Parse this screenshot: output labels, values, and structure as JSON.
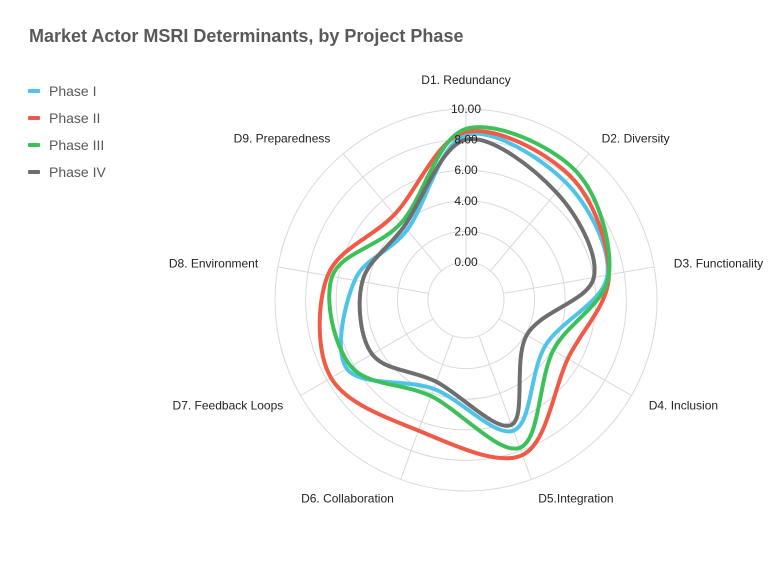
{
  "chart_data": {
    "type": "radar",
    "title": "Market Actor MSRI Determinants, by Project Phase",
    "axes": [
      "D1. Redundancy",
      "D2. Diversity",
      "D3. Functionality",
      "D4. Inclusion",
      "D5.Integration",
      "D6. Collaboration",
      "D7. Feedback Loops",
      "D8. Environment",
      "D9. Preparedness"
    ],
    "rlim": [
      0,
      10
    ],
    "ticks": [
      0,
      2,
      4,
      6,
      8,
      10
    ],
    "tick_labels": [
      "0.00",
      "2.00",
      "4.00",
      "6.00",
      "8.00",
      "10.00"
    ],
    "grid": true,
    "legend_position": "top-left",
    "series": [
      {
        "name": "Phase I",
        "color": "#4fc3e8",
        "values": [
          8.3,
          7.6,
          6.9,
          3.5,
          6.6,
          3.7,
          6.5,
          4.9,
          3.5
        ]
      },
      {
        "name": "Phase II",
        "color": "#f05a46",
        "values": [
          8.5,
          8.1,
          7.0,
          5.2,
          8.3,
          6.6,
          7.7,
          6.7,
          4.8
        ]
      },
      {
        "name": "Phase III",
        "color": "#3cc05a",
        "values": [
          8.7,
          8.6,
          7.0,
          4.1,
          7.8,
          4.2,
          6.2,
          6.4,
          4.1
        ]
      },
      {
        "name": "Phase IV",
        "color": "#6e6e6e",
        "values": [
          8.0,
          6.7,
          6.0,
          2.1,
          6.2,
          3.2,
          4.6,
          4.4,
          3.8
        ]
      }
    ]
  }
}
